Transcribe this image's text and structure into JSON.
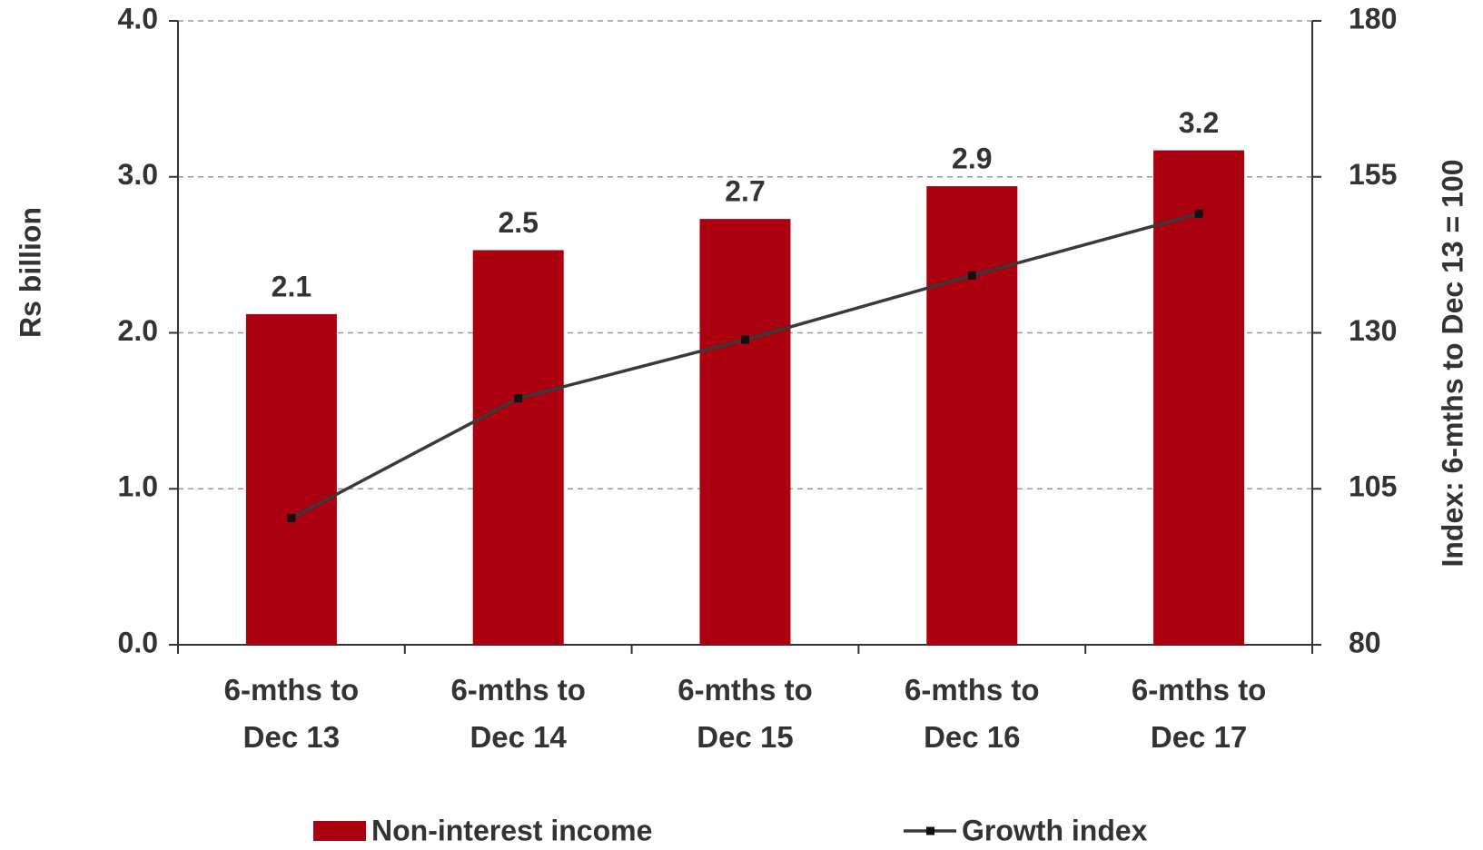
{
  "chart_data": {
    "type": "bar",
    "categories": [
      "6-mths to\nDec 13",
      "6-mths to\nDec 14",
      "6-mths to\nDec 15",
      "6-mths to\nDec 16",
      "6-mths to\nDec 17"
    ],
    "series": [
      {
        "name": "Non-interest income",
        "type": "bar",
        "color": "#ab0010",
        "values": [
          2.12,
          2.53,
          2.73,
          2.94,
          3.17
        ],
        "value_labels": [
          "2.1",
          "2.5",
          "2.7",
          "2.9",
          "3.2"
        ]
      },
      {
        "name": "Growth index",
        "type": "line",
        "color": "#3a3a3a",
        "axis": "y2",
        "values": [
          100.3,
          119.5,
          128.9,
          139.2,
          149.1
        ]
      }
    ],
    "ylabel": "Rs billion",
    "y2label": "Index: 6-mths to Dec 13 = 100",
    "ylim": [
      0,
      4
    ],
    "yticks": [
      {
        "value": 0,
        "label": "0.0"
      },
      {
        "value": 1,
        "label": "1.0"
      },
      {
        "value": 2,
        "label": "2.0"
      },
      {
        "value": 3,
        "label": "3.0"
      },
      {
        "value": 4,
        "label": "4.0"
      }
    ],
    "y2lim": [
      80,
      180
    ],
    "y2ticks": [
      80,
      105,
      130,
      155,
      180
    ],
    "grid": true
  }
}
